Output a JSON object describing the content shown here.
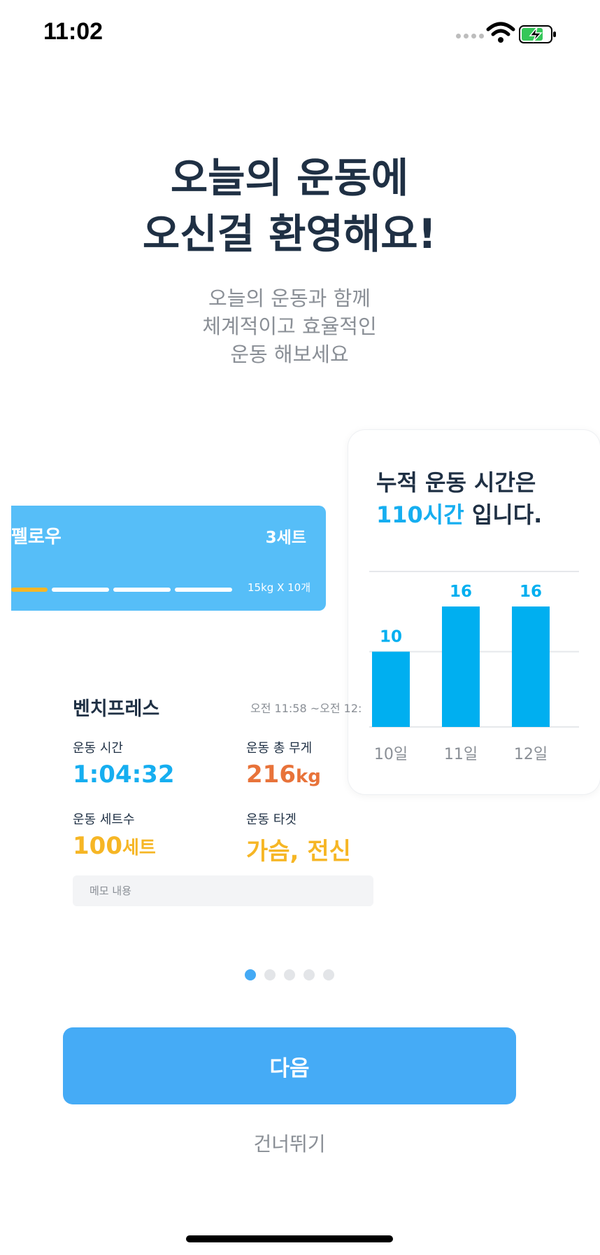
{
  "status_bar": {
    "time": "11:02"
  },
  "intro": {
    "title_line1": "오늘의 운동에",
    "title_line2": "오신걸 환영해요!",
    "subtitle_line1": "오늘의 운동과 함께",
    "subtitle_line2": "체계적이고 효율적인",
    "subtitle_line3": "운동 해보세요"
  },
  "exercise_card": {
    "name": "펠로우",
    "sets": "3세트",
    "weight_reps": "15kg X 10개",
    "set_progress": 0.25
  },
  "chart_card": {
    "text_prefix": "누적 운동 시간은",
    "highlight": "110시간",
    "text_suffix": " 입니다."
  },
  "chart_data": {
    "type": "bar",
    "categories": [
      "10일",
      "11일",
      "12일"
    ],
    "values": [
      10,
      16,
      16
    ],
    "accent": "#00aff0"
  },
  "stats": {
    "exercise_name": "벤치프레스",
    "time_range": "오전 11:58 ~오전 12:",
    "duration_label": "운동 시간",
    "duration_value": "1:04:32",
    "total_weight_label": "운동 총 무게",
    "total_weight_value": "216",
    "total_weight_unit": "kg",
    "sets_label": "운동 세트수",
    "sets_value": "100",
    "sets_unit": "세트",
    "target_label": "운동 타겟",
    "target_value": "가슴, 전신",
    "memo_placeholder": "메모 내용"
  },
  "pagination": {
    "count": 5,
    "active": 0
  },
  "actions": {
    "next_label": "다음",
    "skip_label": "건너뛰기"
  },
  "colors": {
    "primary": "#45abf6",
    "time": "#16aef0",
    "weight": "#e8733a",
    "sets": "#f6b625"
  }
}
